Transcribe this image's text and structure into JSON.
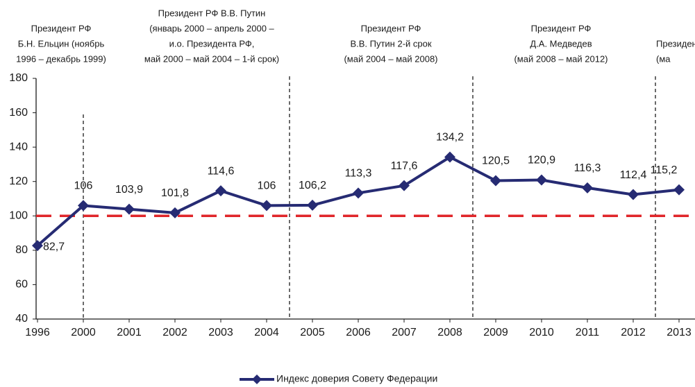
{
  "chart_data": {
    "type": "line",
    "categories": [
      "1996",
      "2000",
      "2001",
      "2002",
      "2003",
      "2004",
      "2005",
      "2006",
      "2007",
      "2008",
      "2009",
      "2010",
      "2011",
      "2012",
      "2013"
    ],
    "series": [
      {
        "name": "Индекс доверия Совету Федерации",
        "color": "#262b73",
        "values": [
          82.7,
          106,
          103.9,
          101.8,
          114.6,
          106,
          106.2,
          113.3,
          117.6,
          134.2,
          120.5,
          120.9,
          116.3,
          112.4,
          115.2
        ],
        "value_labels": [
          "82,7",
          "106",
          "103,9",
          "101,8",
          "114,6",
          "106",
          "106,2",
          "113,3",
          "117,6",
          "134,2",
          "120,5",
          "120,9",
          "116,3",
          "112,4",
          "115,2"
        ]
      }
    ],
    "ylim": [
      40,
      180
    ],
    "yticks": [
      40,
      60,
      80,
      100,
      120,
      140,
      160,
      180
    ],
    "reference_line": {
      "value": 100,
      "color": "#e0262a"
    },
    "annotations": [
      {
        "lines": [
          "Президент РФ",
          "Б.Н. Ельцин (ноябрь",
          "1996 – декабрь 1999)"
        ]
      },
      {
        "lines": [
          "Президент РФ В.В. Путин",
          "(январь 2000 – апрель 2000 –",
          "и.о. Президента РФ,",
          "май 2000 – май 2004 – 1-й срок)"
        ]
      },
      {
        "lines": [
          "Президент РФ",
          "В.В. Путин 2-й срок",
          "(май 2004 –  май 2008)"
        ]
      },
      {
        "lines": [
          "Президент РФ",
          "Д.А. Медведев",
          "(май 2008 –  май 2012)"
        ]
      },
      {
        "lines": [
          "Президент РФ",
          "(ма"
        ]
      }
    ],
    "legend": "bottom"
  }
}
